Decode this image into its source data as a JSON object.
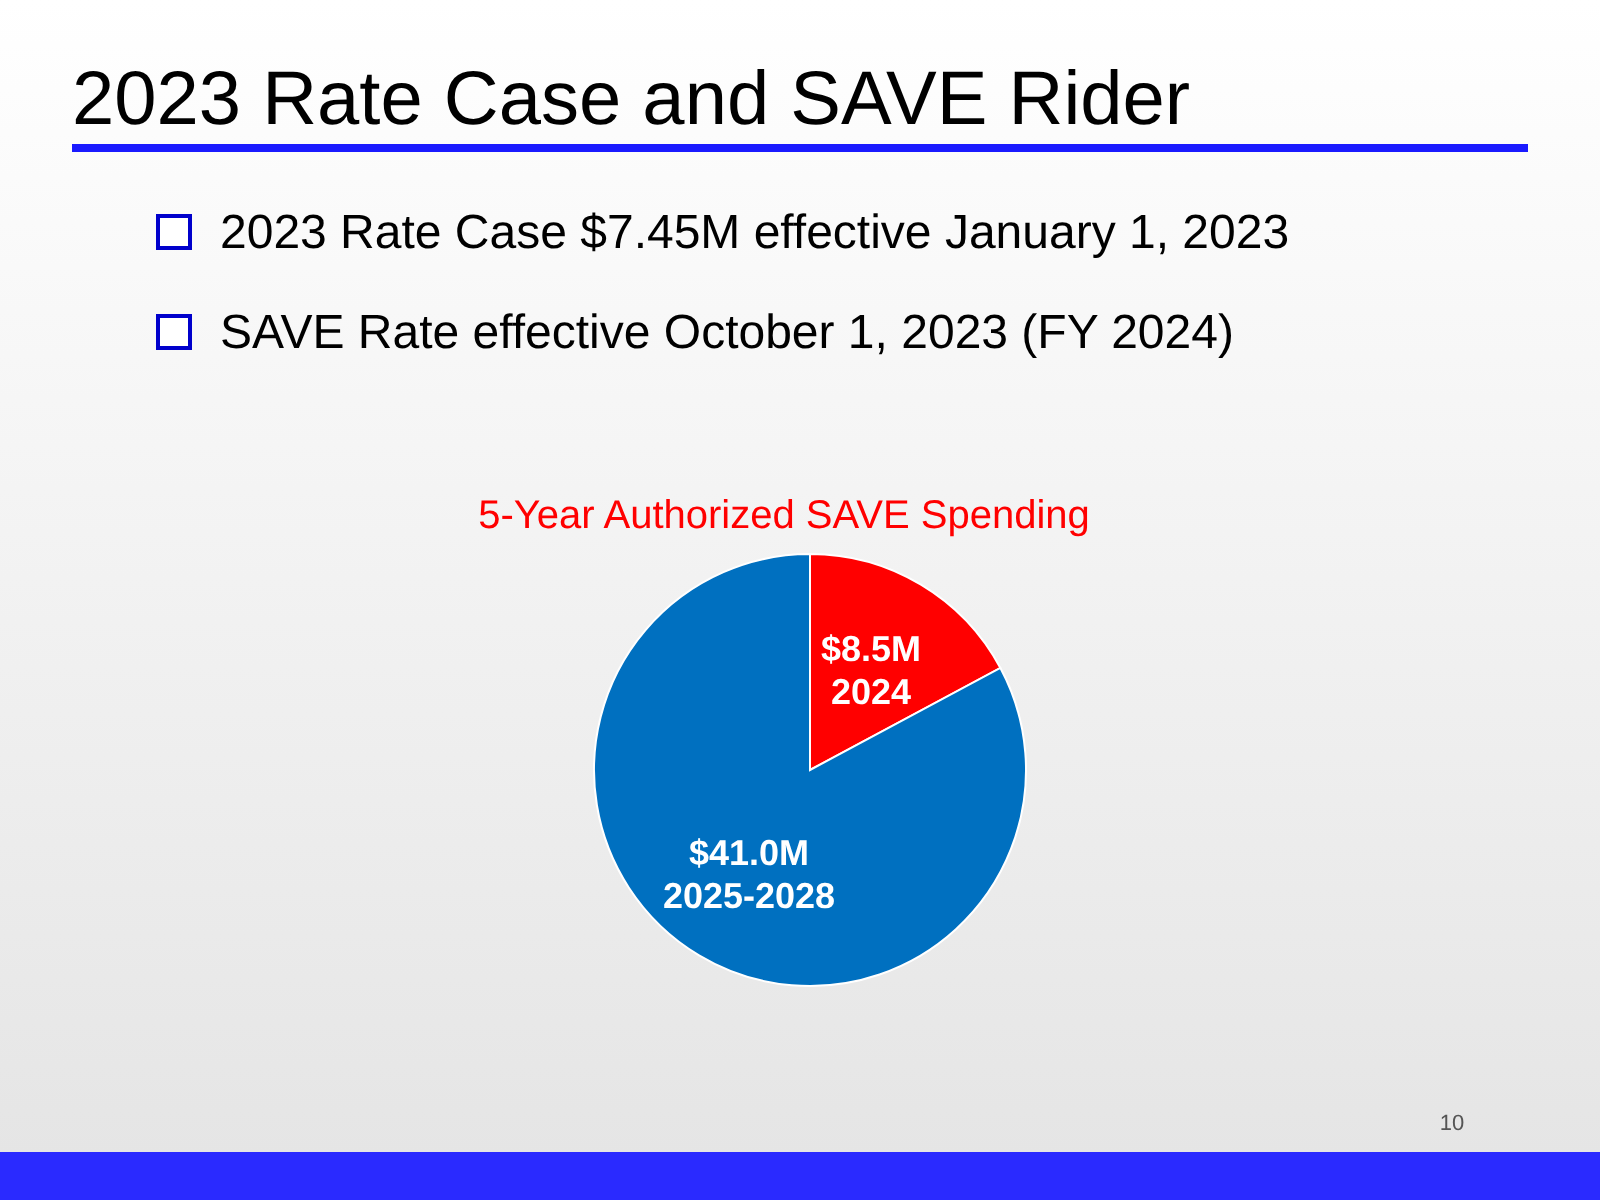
{
  "chart_data": {
    "type": "pie",
    "title": "2023 Rate Case and SAVE Rider",
    "subtitle": "5-Year Authorized SAVE Spending",
    "annotations": [
      "2023 Rate Case $7.45M effective January 1, 2023",
      "SAVE Rate effective October 1, 2023 (FY 2024)",
      "10"
    ],
    "categories": [
      "2024",
      "2025-2028"
    ],
    "values": [
      8.5,
      41.0
    ],
    "value_labels": [
      "$8.5M",
      "$41.0M"
    ],
    "colors": [
      "#ff0000",
      "#0070c0"
    ]
  }
}
